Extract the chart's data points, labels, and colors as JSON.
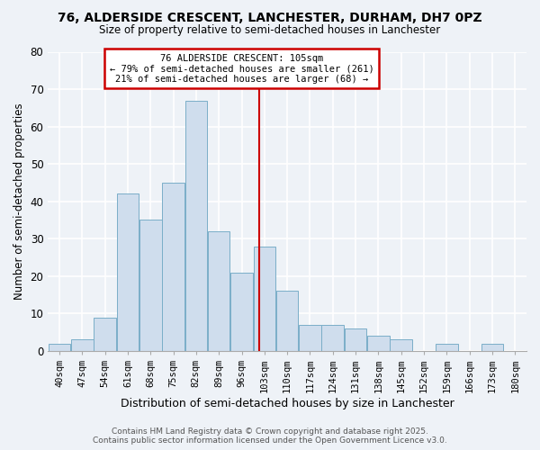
{
  "title": "76, ALDERSIDE CRESCENT, LANCHESTER, DURHAM, DH7 0PZ",
  "subtitle": "Size of property relative to semi-detached houses in Lanchester",
  "xlabel": "Distribution of semi-detached houses by size in Lanchester",
  "ylabel": "Number of semi-detached properties",
  "bar_labels": [
    "40sqm",
    "47sqm",
    "54sqm",
    "61sqm",
    "68sqm",
    "75sqm",
    "82sqm",
    "89sqm",
    "96sqm",
    "103sqm",
    "110sqm",
    "117sqm",
    "124sqm",
    "131sqm",
    "138sqm",
    "145sqm",
    "152sqm",
    "159sqm",
    "166sqm",
    "173sqm",
    "180sqm"
  ],
  "bar_values": [
    2,
    3,
    9,
    42,
    35,
    45,
    67,
    32,
    21,
    28,
    16,
    7,
    7,
    6,
    4,
    3,
    0,
    2,
    0,
    2,
    0
  ],
  "bin_edges": [
    40,
    47,
    54,
    61,
    68,
    75,
    82,
    89,
    96,
    103,
    110,
    117,
    124,
    131,
    138,
    145,
    152,
    159,
    166,
    173,
    180
  ],
  "bar_color": "#cfdded",
  "bar_edge_color": "#7aaec8",
  "vline_x": 105,
  "vline_color": "#cc0000",
  "annotation_title": "76 ALDERSIDE CRESCENT: 105sqm",
  "annotation_line1": "← 79% of semi-detached houses are smaller (261)",
  "annotation_line2": "21% of semi-detached houses are larger (68) →",
  "annotation_box_color": "#ffffff",
  "annotation_box_edge": "#cc0000",
  "ylim": [
    0,
    80
  ],
  "yticks": [
    0,
    10,
    20,
    30,
    40,
    50,
    60,
    70,
    80
  ],
  "background_color": "#eef2f7",
  "grid_color": "#ffffff",
  "footer1": "Contains HM Land Registry data © Crown copyright and database right 2025.",
  "footer2": "Contains public sector information licensed under the Open Government Licence v3.0."
}
